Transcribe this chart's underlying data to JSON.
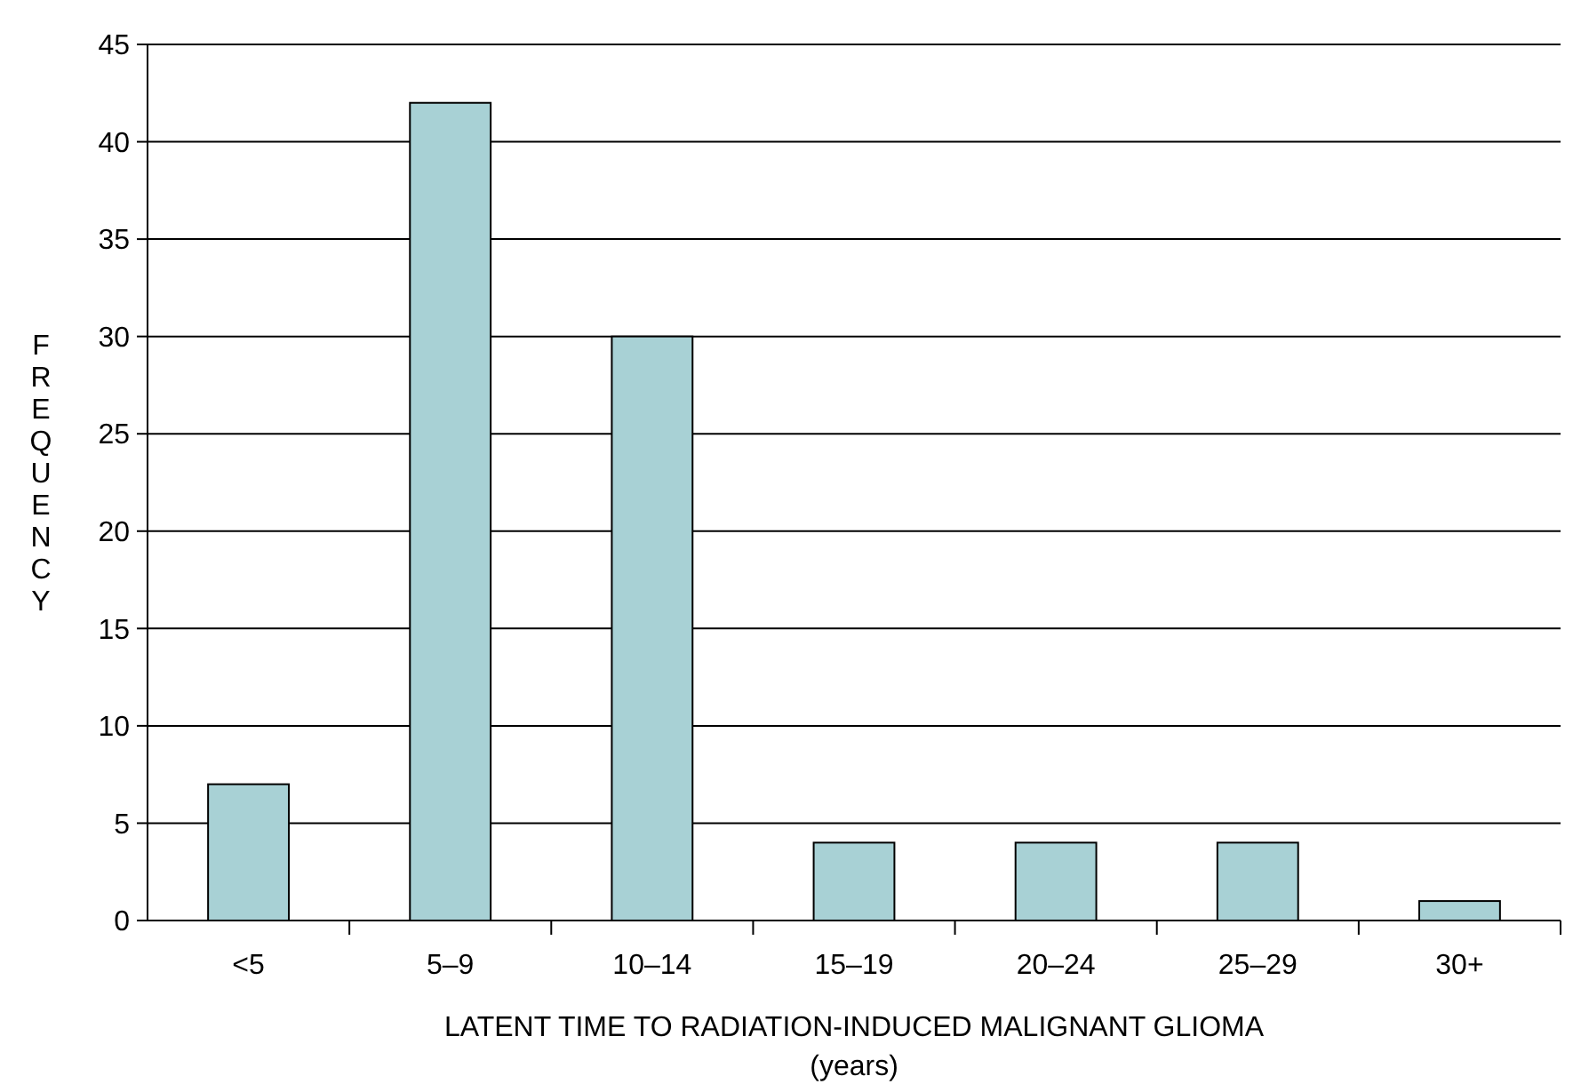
{
  "chart_data": {
    "type": "bar",
    "xlabel": "LATENT TIME TO RADIATION-INDUCED MALIGNANT GLIOMA\n(years)",
    "ylabel": "FREQUENCY",
    "categories": [
      "<5",
      "5–9",
      "10–14",
      "15–19",
      "20–24",
      "25–29",
      "30+"
    ],
    "values": [
      7,
      42,
      30,
      4,
      4,
      4,
      1
    ],
    "color": "#a8d1d5",
    "ylim": [
      0,
      45
    ],
    "yticks": [
      0,
      5,
      10,
      15,
      20,
      25,
      30,
      35,
      40,
      45
    ],
    "grid": "y"
  }
}
